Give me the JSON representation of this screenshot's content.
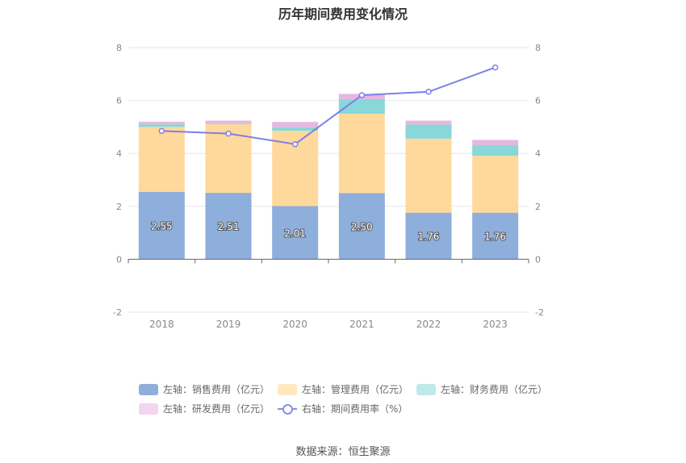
{
  "chart_data": {
    "type": "bar",
    "title": "历年期间费用变化情况",
    "categories": [
      "2018",
      "2019",
      "2020",
      "2021",
      "2022",
      "2023"
    ],
    "left_axis": {
      "min": -2,
      "max": 8,
      "ticks": [
        "-2",
        "0",
        "2",
        "4",
        "6",
        "8"
      ]
    },
    "right_axis": {
      "min": -2,
      "max": 8,
      "ticks": [
        "-2",
        "0",
        "2",
        "4",
        "6",
        "8"
      ]
    },
    "grid": true,
    "legend_position": "bottom",
    "series": [
      {
        "name": "左轴：销售费用（亿元）",
        "type": "bar",
        "axis": "left",
        "color": "#8eaedb",
        "values": [
          2.55,
          2.51,
          2.01,
          2.5,
          1.76,
          1.76
        ],
        "labels": [
          "2.55",
          "2.51",
          "2.01",
          "2.50",
          "1.76",
          "1.76"
        ]
      },
      {
        "name": "左轴：管理费用（亿元）",
        "type": "bar",
        "axis": "left",
        "color": "#ffd99b",
        "values": [
          2.45,
          2.6,
          2.85,
          3.0,
          2.8,
          2.15
        ]
      },
      {
        "name": "左轴：财务费用（亿元）",
        "type": "bar",
        "axis": "left",
        "color": "#88d7d9",
        "values": [
          0.1,
          0.03,
          0.13,
          0.55,
          0.53,
          0.4
        ]
      },
      {
        "name": "左轴：研发费用（亿元）",
        "type": "bar",
        "axis": "left",
        "color": "#e5b8e0",
        "values": [
          0.1,
          0.1,
          0.2,
          0.2,
          0.15,
          0.2
        ]
      },
      {
        "name": "右轴：期间费用率（%）",
        "type": "line",
        "axis": "right",
        "color": "#7f7fe8",
        "values": [
          4.85,
          4.75,
          4.35,
          6.2,
          6.33,
          7.25
        ]
      }
    ]
  },
  "source": "数据来源：恒生聚源"
}
